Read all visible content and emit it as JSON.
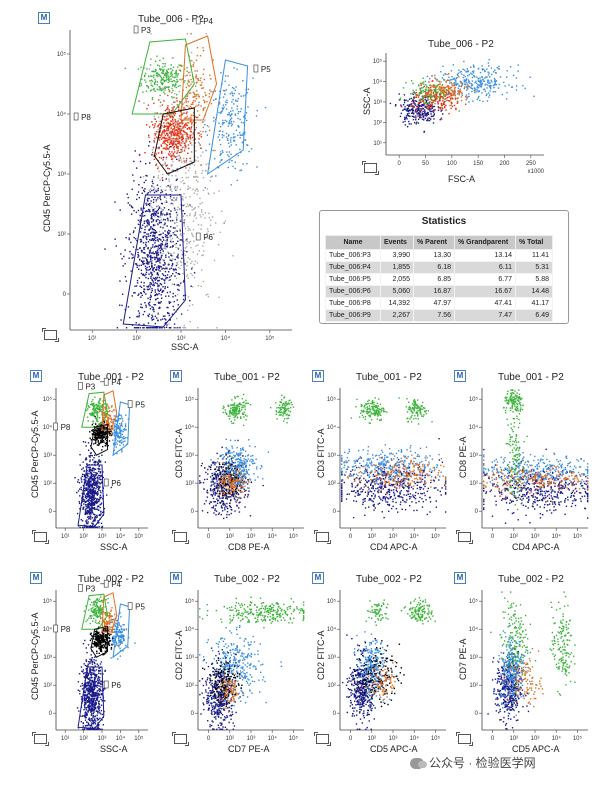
{
  "chart_data": [
    {
      "type": "scatter",
      "id": "main",
      "title": "Tube_006 - P2",
      "xlabel": "SSC-A",
      "ylabel": "CD45 PerCP-Cy5.5-A",
      "xticks": [
        "10¹",
        "10²",
        "10³",
        "10⁴",
        "10⁵"
      ],
      "yticks": [
        "10⁵",
        "10⁴",
        "10³",
        "10²",
        "0"
      ],
      "gates": [
        "P3",
        "P4",
        "P5",
        "P6",
        "P8"
      ],
      "populations": [
        {
          "name": "P3",
          "color": "#3cb43c",
          "center": [
            0.42,
            0.84
          ],
          "spread": [
            0.05,
            0.03
          ],
          "count": 220
        },
        {
          "name": "P4",
          "color": "#e07020",
          "center": [
            0.56,
            0.78
          ],
          "spread": [
            0.04,
            0.07
          ],
          "count": 160
        },
        {
          "name": "P5",
          "color": "#3a8fe0",
          "center": [
            0.72,
            0.68
          ],
          "spread": [
            0.05,
            0.08
          ],
          "count": 220
        },
        {
          "name": "P6",
          "color": "#1a1a8a",
          "center": [
            0.38,
            0.25
          ],
          "spread": [
            0.06,
            0.14
          ],
          "count": 900
        },
        {
          "name": "P8",
          "color": "#e53010",
          "center": [
            0.46,
            0.66
          ],
          "spread": [
            0.045,
            0.05
          ],
          "count": 480
        },
        {
          "name": "ungated",
          "color": "#aaaaaa",
          "center": [
            0.5,
            0.45
          ],
          "spread": [
            0.07,
            0.2
          ],
          "count": 500
        }
      ]
    },
    {
      "type": "scatter",
      "id": "fsc",
      "title": "Tube_006 - P2",
      "xlabel": "FSC-A",
      "ylabel": "SSC-A",
      "xunit": "x1000",
      "xticks": [
        "0",
        "50",
        "100",
        "150",
        "200",
        "250"
      ],
      "yticks": [
        "10⁵",
        "10⁴",
        "10³",
        "10²",
        "10¹"
      ],
      "populations": [
        {
          "name": "P6",
          "color": "#1a1a8a",
          "center": [
            0.2,
            0.45
          ],
          "spread": [
            0.06,
            0.07
          ],
          "count": 250
        },
        {
          "name": "P8",
          "color": "#e53010",
          "center": [
            0.32,
            0.55
          ],
          "spread": [
            0.08,
            0.07
          ],
          "count": 200
        },
        {
          "name": "P5",
          "color": "#3a8fe0",
          "center": [
            0.55,
            0.72
          ],
          "spread": [
            0.12,
            0.08
          ],
          "count": 300
        },
        {
          "name": "P3",
          "color": "#3cb43c",
          "center": [
            0.28,
            0.62
          ],
          "spread": [
            0.07,
            0.06
          ],
          "count": 120
        },
        {
          "name": "P4",
          "color": "#e07020",
          "center": [
            0.38,
            0.64
          ],
          "spread": [
            0.07,
            0.06
          ],
          "count": 120
        }
      ]
    },
    {
      "type": "scatter",
      "id": "r1c1",
      "title": "Tube_001 - P2",
      "xlabel": "SSC-A",
      "ylabel": "CD45 PerCP-Cy5.5-A",
      "xticks": [
        "10¹",
        "10²",
        "10³",
        "10⁴",
        "10⁵"
      ],
      "yticks": [
        "10⁵",
        "10⁴",
        "10³",
        "10²",
        "0"
      ],
      "gates": [
        "P3",
        "P4",
        "P5",
        "P6",
        "P8"
      ],
      "populations": [
        {
          "name": "P3",
          "color": "#3cb43c",
          "center": [
            0.44,
            0.84
          ],
          "spread": [
            0.05,
            0.04
          ],
          "count": 140
        },
        {
          "name": "P4",
          "color": "#e07020",
          "center": [
            0.56,
            0.78
          ],
          "spread": [
            0.04,
            0.05
          ],
          "count": 100
        },
        {
          "name": "P5",
          "color": "#3a8fe0",
          "center": [
            0.68,
            0.7
          ],
          "spread": [
            0.04,
            0.06
          ],
          "count": 140
        },
        {
          "name": "P8",
          "color": "#000000",
          "center": [
            0.48,
            0.68
          ],
          "spread": [
            0.05,
            0.04
          ],
          "count": 250
        },
        {
          "name": "P6",
          "color": "#1a1a8a",
          "center": [
            0.38,
            0.25
          ],
          "spread": [
            0.06,
            0.13
          ],
          "count": 650
        }
      ]
    },
    {
      "type": "scatter",
      "id": "r1c2",
      "title": "Tube_001 - P2",
      "xlabel": "CD8 PE-A",
      "ylabel": "CD3 FITC-A",
      "xticks": [
        "0",
        "10²",
        "10³",
        "10⁴",
        "10⁵"
      ],
      "yticks": [
        "10⁵",
        "10⁴",
        "10³",
        "10²",
        "0"
      ],
      "populations": [
        {
          "name": "P6",
          "color": "#1a1a8a",
          "center": [
            0.25,
            0.3
          ],
          "spread": [
            0.1,
            0.1
          ],
          "count": 400
        },
        {
          "name": "P8",
          "color": "#000000",
          "center": [
            0.3,
            0.35
          ],
          "spread": [
            0.08,
            0.07
          ],
          "count": 150
        },
        {
          "name": "P5",
          "color": "#3a8fe0",
          "center": [
            0.36,
            0.45
          ],
          "spread": [
            0.09,
            0.08
          ],
          "count": 250
        },
        {
          "name": "P4",
          "color": "#e07020",
          "center": [
            0.32,
            0.32
          ],
          "spread": [
            0.06,
            0.05
          ],
          "count": 120
        },
        {
          "name": "P3",
          "color": "#3cb43c",
          "center": [
            0.35,
            0.85
          ],
          "spread": [
            0.05,
            0.04
          ],
          "count": 140
        },
        {
          "name": "P3b",
          "color": "#3cb43c",
          "center": [
            0.8,
            0.85
          ],
          "spread": [
            0.04,
            0.04
          ],
          "count": 90
        }
      ]
    },
    {
      "type": "scatter",
      "id": "r1c3",
      "title": "Tube_001 - P2",
      "xlabel": "CD4 APC-A",
      "ylabel": "CD3 FITC-A",
      "xticks": [
        "0",
        "10²",
        "10³",
        "10⁴",
        "10⁵"
      ],
      "yticks": [
        "10⁵",
        "10⁴",
        "10³",
        "10²",
        "0"
      ],
      "populations": [
        {
          "name": "P6",
          "color": "#1a1a8a",
          "center": [
            0.45,
            0.3
          ],
          "spread": [
            0.25,
            0.08
          ],
          "count": 450
        },
        {
          "name": "P5",
          "color": "#3a8fe0",
          "center": [
            0.45,
            0.45
          ],
          "spread": [
            0.25,
            0.06
          ],
          "count": 300
        },
        {
          "name": "P4",
          "color": "#e07020",
          "center": [
            0.55,
            0.38
          ],
          "spread": [
            0.2,
            0.06
          ],
          "count": 200
        },
        {
          "name": "P3",
          "color": "#3cb43c",
          "center": [
            0.3,
            0.85
          ],
          "spread": [
            0.06,
            0.04
          ],
          "count": 130
        },
        {
          "name": "P3b",
          "color": "#3cb43c",
          "center": [
            0.72,
            0.85
          ],
          "spread": [
            0.05,
            0.04
          ],
          "count": 100
        }
      ]
    },
    {
      "type": "scatter",
      "id": "r1c4",
      "title": "Tube_001 - P2",
      "xlabel": "CD4 APC-A",
      "ylabel": "CD8 PE-A",
      "xticks": [
        "0",
        "10²",
        "10³",
        "10⁴",
        "10⁵"
      ],
      "yticks": [
        "10⁵",
        "10⁴",
        "10³",
        "10²",
        "0"
      ],
      "populations": [
        {
          "name": "P6",
          "color": "#1a1a8a",
          "center": [
            0.5,
            0.28
          ],
          "spread": [
            0.27,
            0.08
          ],
          "count": 450
        },
        {
          "name": "P5",
          "color": "#3a8fe0",
          "center": [
            0.5,
            0.42
          ],
          "spread": [
            0.27,
            0.05
          ],
          "count": 300
        },
        {
          "name": "P4",
          "color": "#e07020",
          "center": [
            0.5,
            0.35
          ],
          "spread": [
            0.25,
            0.05
          ],
          "count": 200
        },
        {
          "name": "P3",
          "color": "#3cb43c",
          "center": [
            0.3,
            0.9
          ],
          "spread": [
            0.05,
            0.04
          ],
          "count": 120
        },
        {
          "name": "P3b",
          "color": "#3cb43c",
          "center": [
            0.3,
            0.55
          ],
          "spread": [
            0.04,
            0.18
          ],
          "count": 120
        }
      ]
    },
    {
      "type": "scatter",
      "id": "r2c1",
      "title": "Tube_002 - P2",
      "xlabel": "SSC-A",
      "ylabel": "CD45 PerCP-Cy5.5-A",
      "xticks": [
        "10¹",
        "10²",
        "10³",
        "10⁴",
        "10⁵"
      ],
      "yticks": [
        "10⁵",
        "10⁴",
        "10³",
        "10²",
        "0"
      ],
      "gates": [
        "P3",
        "P4",
        "P5",
        "P6",
        "P8"
      ],
      "populations": [
        {
          "name": "P3",
          "color": "#3cb43c",
          "center": [
            0.44,
            0.86
          ],
          "spread": [
            0.05,
            0.04
          ],
          "count": 140
        },
        {
          "name": "P4",
          "color": "#e07020",
          "center": [
            0.56,
            0.76
          ],
          "spread": [
            0.04,
            0.05
          ],
          "count": 100
        },
        {
          "name": "P5",
          "color": "#3a8fe0",
          "center": [
            0.68,
            0.68
          ],
          "spread": [
            0.04,
            0.06
          ],
          "count": 140
        },
        {
          "name": "P8",
          "color": "#000000",
          "center": [
            0.48,
            0.64
          ],
          "spread": [
            0.05,
            0.04
          ],
          "count": 250
        },
        {
          "name": "P6",
          "color": "#1a1a8a",
          "center": [
            0.38,
            0.25
          ],
          "spread": [
            0.06,
            0.13
          ],
          "count": 650
        }
      ]
    },
    {
      "type": "scatter",
      "id": "r2c2",
      "title": "Tube_002 - P2",
      "xlabel": "CD7 PE-A",
      "ylabel": "CD2 FITC-A",
      "xticks": [
        "0",
        "10²",
        "10³",
        "10⁴",
        "10⁵"
      ],
      "yticks": [
        "10⁵",
        "10⁴",
        "10³",
        "10²",
        "0"
      ],
      "populations": [
        {
          "name": "P6",
          "color": "#1a1a8a",
          "center": [
            0.2,
            0.25
          ],
          "spread": [
            0.07,
            0.12
          ],
          "count": 400
        },
        {
          "name": "P5",
          "color": "#3a8fe0",
          "center": [
            0.35,
            0.45
          ],
          "spread": [
            0.12,
            0.12
          ],
          "count": 300
        },
        {
          "name": "P8",
          "color": "#000000",
          "center": [
            0.25,
            0.35
          ],
          "spread": [
            0.07,
            0.08
          ],
          "count": 150
        },
        {
          "name": "P4",
          "color": "#e07020",
          "center": [
            0.3,
            0.28
          ],
          "spread": [
            0.05,
            0.05
          ],
          "count": 80
        },
        {
          "name": "P3",
          "color": "#3cb43c",
          "center": [
            0.6,
            0.85
          ],
          "spread": [
            0.22,
            0.04
          ],
          "count": 250
        }
      ]
    },
    {
      "type": "scatter",
      "id": "r2c3",
      "title": "Tube_002 - P2",
      "xlabel": "CD5 APC-A",
      "ylabel": "CD2 FITC-A",
      "xticks": [
        "0",
        "10²",
        "10³",
        "10⁴",
        "10⁵"
      ],
      "yticks": [
        "10⁵",
        "10⁴",
        "10³",
        "10²",
        "0"
      ],
      "populations": [
        {
          "name": "P6",
          "color": "#1a1a8a",
          "center": [
            0.2,
            0.3
          ],
          "spread": [
            0.06,
            0.12
          ],
          "count": 400
        },
        {
          "name": "P5",
          "color": "#3a8fe0",
          "center": [
            0.3,
            0.45
          ],
          "spread": [
            0.07,
            0.1
          ],
          "count": 250
        },
        {
          "name": "P8",
          "color": "#000000",
          "center": [
            0.35,
            0.4
          ],
          "spread": [
            0.1,
            0.1
          ],
          "count": 150
        },
        {
          "name": "P4",
          "color": "#e07020",
          "center": [
            0.4,
            0.35
          ],
          "spread": [
            0.06,
            0.06
          ],
          "count": 80
        },
        {
          "name": "P3",
          "color": "#3cb43c",
          "center": [
            0.75,
            0.85
          ],
          "spread": [
            0.06,
            0.04
          ],
          "count": 120
        },
        {
          "name": "P3b",
          "color": "#3cb43c",
          "center": [
            0.35,
            0.85
          ],
          "spread": [
            0.05,
            0.04
          ],
          "count": 60
        }
      ]
    },
    {
      "type": "scatter",
      "id": "r2c4",
      "title": "Tube_002 - P2",
      "xlabel": "CD5 APC-A",
      "ylabel": "CD7 PE-A",
      "xticks": [
        "0",
        "10²",
        "10³",
        "10⁴",
        "10⁵"
      ],
      "yticks": [
        "10⁵",
        "10⁴",
        "10³",
        "10²",
        "0"
      ],
      "populations": [
        {
          "name": "P6",
          "color": "#1a1a8a",
          "center": [
            0.25,
            0.3
          ],
          "spread": [
            0.06,
            0.12
          ],
          "count": 400
        },
        {
          "name": "P5",
          "color": "#3a8fe0",
          "center": [
            0.28,
            0.45
          ],
          "spread": [
            0.06,
            0.12
          ],
          "count": 250
        },
        {
          "name": "P4",
          "color": "#e07020",
          "center": [
            0.4,
            0.35
          ],
          "spread": [
            0.08,
            0.08
          ],
          "count": 100
        },
        {
          "name": "P3",
          "color": "#3cb43c",
          "center": [
            0.3,
            0.65
          ],
          "spread": [
            0.06,
            0.15
          ],
          "count": 150
        },
        {
          "name": "P3b",
          "color": "#3cb43c",
          "center": [
            0.75,
            0.6
          ],
          "spread": [
            0.05,
            0.15
          ],
          "count": 150
        }
      ]
    }
  ],
  "statistics": {
    "title": "Statistics",
    "headers": [
      "Name",
      "Events",
      "% Parent",
      "% Grandparent",
      "% Total"
    ],
    "rows": [
      [
        "Tube_006:P3",
        "3,990",
        "13.30",
        "13.14",
        "11.41"
      ],
      [
        "Tube_006:P4",
        "1,855",
        "6.18",
        "6.11",
        "5.31"
      ],
      [
        "Tube_006:P5",
        "2,055",
        "6.85",
        "6.77",
        "5.88"
      ],
      [
        "Tube_006:P6",
        "5,060",
        "16.87",
        "16.67",
        "14.48"
      ],
      [
        "Tube_006:P8",
        "14,392",
        "47.97",
        "47.41",
        "41.17"
      ],
      [
        "Tube_006:P9",
        "2,267",
        "7.56",
        "7.47",
        "6.49"
      ]
    ]
  },
  "ui": {
    "m_label": "M"
  },
  "watermark": "公众号 · 检验医学网"
}
